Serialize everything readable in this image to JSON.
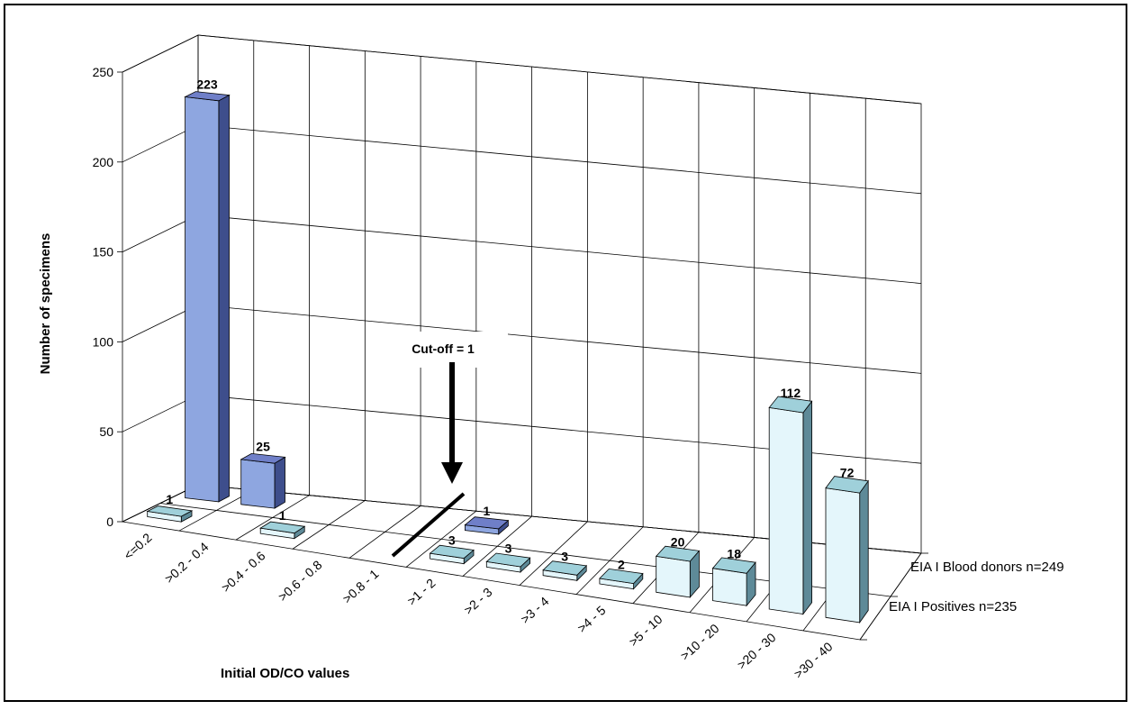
{
  "chart_data": {
    "type": "bar",
    "subtype": "3d-column",
    "title": "",
    "xlabel": "Initial OD/CO values",
    "ylabel": "Number of specimens",
    "ylim": [
      0,
      250
    ],
    "yticks": [
      "0",
      "50",
      "100",
      "150",
      "200",
      "250"
    ],
    "grid": true,
    "categories": [
      "<=0.2",
      ">0.2 - 0.4",
      ">0.4 - 0.6",
      ">0.6 - 0.8",
      ">0.8 - 1",
      ">1 - 2",
      ">2 - 3",
      ">3 - 4",
      ">4 - 5",
      ">5 - 10",
      ">10 - 20",
      ">20 - 30",
      ">30 - 40"
    ],
    "series": [
      {
        "name": "EIA I Blood donors n=249",
        "color": "#8EA6E0",
        "values": [
          223,
          25,
          null,
          null,
          null,
          1,
          null,
          null,
          null,
          null,
          null,
          null,
          null
        ],
        "labels": [
          "223",
          "25",
          "",
          "",
          "",
          "1",
          "",
          "",
          "",
          "",
          "",
          "",
          ""
        ]
      },
      {
        "name": "EIA I Positives n=235",
        "color": "#E4F6FB",
        "values": [
          1,
          null,
          1,
          null,
          null,
          3,
          3,
          3,
          2,
          20,
          18,
          112,
          72
        ],
        "labels": [
          "1",
          "",
          "1",
          "",
          "",
          "3",
          "3",
          "3",
          "2",
          "20",
          "18",
          "112",
          "72"
        ]
      }
    ],
    "annotation": "Cut-off = 1"
  }
}
